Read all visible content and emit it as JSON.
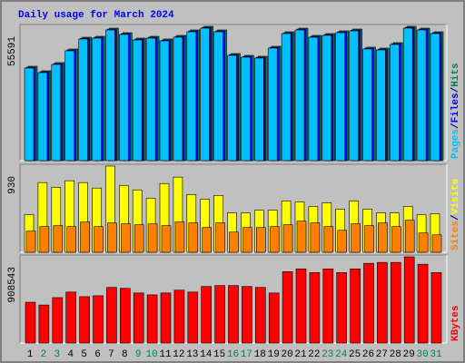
{
  "chart_data": [
    {
      "type": "bar",
      "title": "Daily usage for March 2024",
      "legend_separator": "/",
      "ylim": [
        0,
        55591
      ],
      "yticks": [
        55591
      ],
      "series": [
        {
          "name": "Hits",
          "color": "#00805c",
          "values": [
            39063,
            37185,
            40566,
            46200,
            51082,
            51458,
            54838,
            52960,
            50706,
            51458,
            50331,
            51833,
            54087,
            55591,
            54087,
            44321,
            43570,
            43195,
            47326,
            53335,
            54838,
            51833,
            52585,
            53711,
            54462,
            46951,
            46575,
            48828,
            55591,
            54838,
            53335
          ]
        },
        {
          "name": "Files",
          "color": "#0000ff",
          "values": [
            38663,
            36785,
            40166,
            45800,
            50682,
            51058,
            54438,
            52560,
            50306,
            51058,
            49931,
            51433,
            53687,
            55191,
            53687,
            43921,
            43170,
            42795,
            46926,
            52935,
            54438,
            51433,
            52185,
            53311,
            54062,
            46551,
            46175,
            48428,
            55191,
            54438,
            52935
          ]
        },
        {
          "name": "Pages",
          "color": "#00c0ff",
          "values": [
            38313,
            36435,
            39816,
            45450,
            50332,
            50708,
            54088,
            52210,
            49956,
            50708,
            49581,
            51083,
            53337,
            54841,
            53337,
            43571,
            42820,
            42445,
            46576,
            52585,
            54088,
            51083,
            51835,
            52961,
            53712,
            46201,
            45825,
            48078,
            54841,
            54088,
            52585
          ]
        }
      ]
    },
    {
      "type": "bar",
      "legend_separator": "/",
      "ylim": [
        0,
        930
      ],
      "yticks": [
        930
      ],
      "series": [
        {
          "name": "Visits",
          "color": "#ffff00",
          "values": [
            406,
            752,
            702,
            772,
            752,
            693,
            930,
            722,
            673,
            584,
            742,
            811,
            623,
            574,
            613,
            425,
            425,
            455,
            455,
            554,
            544,
            495,
            534,
            465,
            554,
            465,
            425,
            425,
            495,
            406,
            416
          ]
        },
        {
          "name": "Sites",
          "color": "#ff8000",
          "values": [
            228,
            277,
            287,
            277,
            327,
            277,
            317,
            307,
            297,
            307,
            287,
            327,
            317,
            267,
            317,
            218,
            267,
            267,
            277,
            297,
            336,
            317,
            277,
            237,
            307,
            287,
            317,
            277,
            346,
            208,
            188
          ]
        }
      ]
    },
    {
      "type": "bar",
      "ylim": [
        0,
        908543
      ],
      "yticks": [
        908543
      ],
      "categories": [
        "1",
        "2",
        "3",
        "4",
        "5",
        "6",
        "7",
        "8",
        "9",
        "10",
        "11",
        "12",
        "13",
        "14",
        "15",
        "16",
        "17",
        "18",
        "19",
        "20",
        "21",
        "22",
        "23",
        "24",
        "25",
        "26",
        "27",
        "28",
        "29",
        "30",
        "31"
      ],
      "category_colors": [
        "#000000",
        "#00805c",
        "#00805c",
        "#000000",
        "#000000",
        "#000000",
        "#000000",
        "#000000",
        "#00805c",
        "#00805c",
        "#000000",
        "#000000",
        "#000000",
        "#000000",
        "#000000",
        "#00805c",
        "#00805c",
        "#000000",
        "#000000",
        "#000000",
        "#000000",
        "#000000",
        "#00805c",
        "#00805c",
        "#000000",
        "#000000",
        "#000000",
        "#000000",
        "#000000",
        "#00805c",
        "#00805c"
      ],
      "series": [
        {
          "name": "KBytes",
          "color": "#ff0000",
          "values": [
            429836,
            400529,
            478681,
            537295,
            488450,
            498219,
            586140,
            576371,
            527526,
            507988,
            527526,
            556833,
            537295,
            595909,
            605678,
            605678,
            595909,
            586140,
            527526,
            752207,
            781514,
            742438,
            781514,
            742438,
            781514,
            840128,
            849897,
            849897,
            908543,
            830359,
            742438
          ]
        }
      ]
    }
  ]
}
